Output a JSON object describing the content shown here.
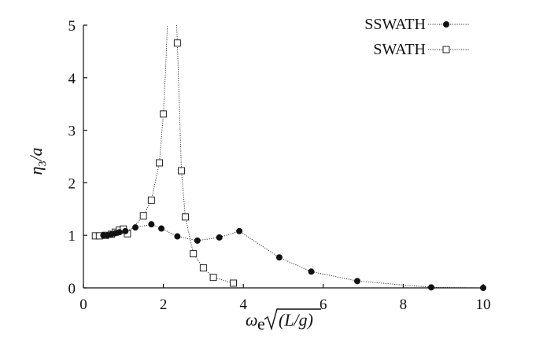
{
  "chart_data": {
    "type": "line",
    "xlim": [
      0,
      10
    ],
    "ylim": [
      0,
      5
    ],
    "xticks": [
      "0",
      "2",
      "4",
      "6",
      "8",
      "10"
    ],
    "yticks": [
      "0",
      "1",
      "2",
      "3",
      "4",
      "5"
    ],
    "xlabel": {
      "omega": "ω",
      "sub": "e",
      "radicand": "(L/g)"
    },
    "ylabel": {
      "eta": "η",
      "sub": "3",
      "rest": "/a"
    },
    "legend_position": "top-right",
    "series": [
      {
        "name": "SSWATH",
        "marker": "filled-circle",
        "points": [
          {
            "x": 0.5,
            "y": 1.0
          },
          {
            "x": 0.6,
            "y": 1.0
          },
          {
            "x": 0.7,
            "y": 1.02
          },
          {
            "x": 0.8,
            "y": 1.04
          },
          {
            "x": 0.9,
            "y": 1.06
          },
          {
            "x": 1.05,
            "y": 1.08
          },
          {
            "x": 1.3,
            "y": 1.15
          },
          {
            "x": 1.7,
            "y": 1.21
          },
          {
            "x": 1.95,
            "y": 1.13
          },
          {
            "x": 2.35,
            "y": 0.98
          },
          {
            "x": 2.85,
            "y": 0.9
          },
          {
            "x": 3.4,
            "y": 0.96
          },
          {
            "x": 3.9,
            "y": 1.08
          },
          {
            "x": 4.9,
            "y": 0.58
          },
          {
            "x": 5.7,
            "y": 0.31
          },
          {
            "x": 6.85,
            "y": 0.13
          },
          {
            "x": 8.7,
            "y": 0.01
          },
          {
            "x": 10.0,
            "y": 0.0
          }
        ]
      },
      {
        "name": "SWATH",
        "marker": "open-square",
        "points": [
          {
            "x": 0.3,
            "y": 0.99
          },
          {
            "x": 0.4,
            "y": 0.99
          },
          {
            "x": 0.55,
            "y": 1.0
          },
          {
            "x": 0.7,
            "y": 1.02
          },
          {
            "x": 0.8,
            "y": 1.06
          },
          {
            "x": 0.9,
            "y": 1.1
          },
          {
            "x": 1.0,
            "y": 1.12
          },
          {
            "x": 1.1,
            "y": 1.03
          },
          {
            "x": 1.5,
            "y": 1.37
          },
          {
            "x": 1.7,
            "y": 1.67
          },
          {
            "x": 1.9,
            "y": 2.38
          },
          {
            "x": 2.0,
            "y": 3.31
          },
          {
            "x": 2.35,
            "y": 4.66
          },
          {
            "x": 2.45,
            "y": 2.23
          },
          {
            "x": 2.55,
            "y": 1.35
          },
          {
            "x": 2.75,
            "y": 0.65
          },
          {
            "x": 3.0,
            "y": 0.38
          },
          {
            "x": 3.25,
            "y": 0.2
          },
          {
            "x": 3.75,
            "y": 0.09
          }
        ]
      }
    ],
    "line_paths": [
      {
        "series": "SWATH",
        "points": [
          {
            "x": 0.3,
            "y": 0.99
          },
          {
            "x": 0.55,
            "y": 1.0
          },
          {
            "x": 0.8,
            "y": 1.06
          },
          {
            "x": 1.0,
            "y": 1.12
          },
          {
            "x": 1.1,
            "y": 1.03
          },
          {
            "x": 1.5,
            "y": 1.37
          },
          {
            "x": 1.7,
            "y": 1.67
          },
          {
            "x": 1.9,
            "y": 2.38
          },
          {
            "x": 2.0,
            "y": 3.31
          },
          {
            "x": 2.06,
            "y": 4.2
          },
          {
            "x": 2.1,
            "y": 5.0
          }
        ]
      },
      {
        "series": "SWATH",
        "points": [
          {
            "x": 2.33,
            "y": 5.0
          },
          {
            "x": 2.35,
            "y": 4.66
          },
          {
            "x": 2.45,
            "y": 2.23
          },
          {
            "x": 2.55,
            "y": 1.35
          },
          {
            "x": 2.75,
            "y": 0.65
          },
          {
            "x": 3.0,
            "y": 0.38
          },
          {
            "x": 3.25,
            "y": 0.2
          },
          {
            "x": 3.75,
            "y": 0.09
          }
        ]
      },
      {
        "series": "SSWATH",
        "points": [
          {
            "x": 0.5,
            "y": 1.0
          },
          {
            "x": 0.7,
            "y": 1.02
          },
          {
            "x": 0.9,
            "y": 1.06
          },
          {
            "x": 1.05,
            "y": 1.08
          },
          {
            "x": 1.3,
            "y": 1.15
          },
          {
            "x": 1.7,
            "y": 1.21
          },
          {
            "x": 1.95,
            "y": 1.13
          },
          {
            "x": 2.35,
            "y": 0.98
          },
          {
            "x": 2.85,
            "y": 0.9
          },
          {
            "x": 3.4,
            "y": 0.96
          },
          {
            "x": 3.9,
            "y": 1.08
          },
          {
            "x": 4.9,
            "y": 0.58
          },
          {
            "x": 5.7,
            "y": 0.31
          },
          {
            "x": 6.85,
            "y": 0.13
          },
          {
            "x": 8.7,
            "y": 0.01
          },
          {
            "x": 10.0,
            "y": 0.0
          }
        ]
      }
    ]
  }
}
